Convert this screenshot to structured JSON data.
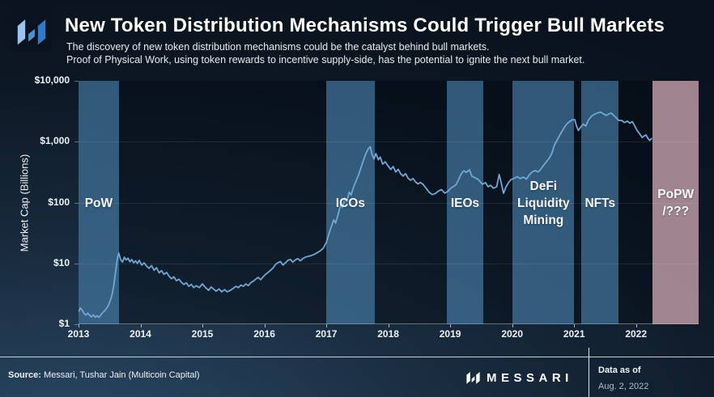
{
  "header": {
    "title": "New Token Distribution Mechanisms Could Trigger Bull Markets",
    "subtitle_line1": "The discovery of new token distribution mechanisms could be the catalyst behind bull markets.",
    "subtitle_line2": "Proof of Physical Work, using token rewards to incentive supply-side, has the potential to ignite the next bull market.",
    "logo_icon": "messari-m-icon",
    "logo_colors": [
      "#9cc3ec",
      "#4f8fd2",
      "#2e7ad0"
    ]
  },
  "chart_data": {
    "type": "line",
    "ylabel": "Market Cap (Billions)",
    "xlabel": "",
    "y_scale": "log",
    "ylim": [
      1,
      10000
    ],
    "xlim": [
      2013,
      2023.01
    ],
    "grid": "horizontal",
    "grid_values": [
      1000,
      100,
      10
    ],
    "y_ticks": [
      {
        "value": 10000,
        "label": "$10,000"
      },
      {
        "value": 1000,
        "label": "$1,000"
      },
      {
        "value": 100,
        "label": "$100"
      },
      {
        "value": 10,
        "label": "$10"
      },
      {
        "value": 1,
        "label": "$1"
      }
    ],
    "x_ticks": [
      {
        "value": 2013,
        "label": "2013"
      },
      {
        "value": 2014,
        "label": "2014"
      },
      {
        "value": 2015,
        "label": "2015"
      },
      {
        "value": 2016,
        "label": "2016"
      },
      {
        "value": 2017,
        "label": "2017"
      },
      {
        "value": 2018,
        "label": "2018"
      },
      {
        "value": 2019,
        "label": "2019"
      },
      {
        "value": 2020,
        "label": "2020"
      },
      {
        "value": 2021,
        "label": "2021"
      },
      {
        "value": 2022,
        "label": "2022"
      }
    ],
    "line_color": "#72a7d3",
    "band_color": "#3a6080",
    "highlight_band_color": "#a48b96",
    "bands": [
      {
        "name": "pow",
        "label_lines": [
          "PoW"
        ],
        "x0": 2013.0,
        "x1": 2013.65,
        "accent": false
      },
      {
        "name": "icos",
        "label_lines": [
          "ICOs"
        ],
        "x0": 2017.0,
        "x1": 2017.78,
        "accent": false
      },
      {
        "name": "ieos",
        "label_lines": [
          "IEOs"
        ],
        "x0": 2018.94,
        "x1": 2019.54,
        "accent": false
      },
      {
        "name": "defi-liquidity-mining",
        "label_lines": [
          "DeFi",
          "Liquidity",
          "Mining"
        ],
        "x0": 2020.01,
        "x1": 2021.0,
        "accent": false
      },
      {
        "name": "nfts",
        "label_lines": [
          "NFTs"
        ],
        "x0": 2021.12,
        "x1": 2021.72,
        "accent": false
      },
      {
        "name": "popw",
        "label_lines": [
          "PoPW",
          "/???"
        ],
        "x0": 2022.27,
        "x1": 2023.01,
        "accent": true
      }
    ],
    "series": [
      {
        "name": "total_crypto_market_cap_usd_billions",
        "points": [
          [
            2013.0,
            1.6
          ],
          [
            2013.03,
            1.85
          ],
          [
            2013.06,
            1.7
          ],
          [
            2013.09,
            1.5
          ],
          [
            2013.12,
            1.42
          ],
          [
            2013.15,
            1.52
          ],
          [
            2013.18,
            1.4
          ],
          [
            2013.21,
            1.32
          ],
          [
            2013.24,
            1.42
          ],
          [
            2013.27,
            1.3
          ],
          [
            2013.3,
            1.38
          ],
          [
            2013.33,
            1.3
          ],
          [
            2013.36,
            1.42
          ],
          [
            2013.39,
            1.55
          ],
          [
            2013.42,
            1.65
          ],
          [
            2013.45,
            1.8
          ],
          [
            2013.48,
            2.0
          ],
          [
            2013.51,
            2.4
          ],
          [
            2013.54,
            3.0
          ],
          [
            2013.57,
            4.4
          ],
          [
            2013.59,
            6.2
          ],
          [
            2013.61,
            9.0
          ],
          [
            2013.63,
            12.5
          ],
          [
            2013.65,
            14.8
          ],
          [
            2013.68,
            11.5
          ],
          [
            2013.71,
            10.5
          ],
          [
            2013.74,
            12.6
          ],
          [
            2013.77,
            11.4
          ],
          [
            2013.8,
            12.2
          ],
          [
            2013.83,
            10.6
          ],
          [
            2013.86,
            11.6
          ],
          [
            2013.89,
            10.2
          ],
          [
            2013.92,
            11.0
          ],
          [
            2013.95,
            10.0
          ],
          [
            2013.98,
            11.2
          ],
          [
            2014.02,
            9.4
          ],
          [
            2014.06,
            10.2
          ],
          [
            2014.1,
            9.0
          ],
          [
            2014.14,
            8.3
          ],
          [
            2014.18,
            9.2
          ],
          [
            2014.22,
            7.7
          ],
          [
            2014.26,
            8.5
          ],
          [
            2014.3,
            7.0
          ],
          [
            2014.34,
            7.6
          ],
          [
            2014.38,
            6.6
          ],
          [
            2014.42,
            7.1
          ],
          [
            2014.46,
            6.2
          ],
          [
            2014.5,
            5.6
          ],
          [
            2014.54,
            6.0
          ],
          [
            2014.58,
            5.2
          ],
          [
            2014.62,
            5.5
          ],
          [
            2014.66,
            4.9
          ],
          [
            2014.7,
            4.5
          ],
          [
            2014.74,
            4.8
          ],
          [
            2014.78,
            4.2
          ],
          [
            2014.82,
            4.5
          ],
          [
            2014.86,
            4.0
          ],
          [
            2014.9,
            4.3
          ],
          [
            2014.95,
            4.0
          ],
          [
            2015.0,
            4.6
          ],
          [
            2015.05,
            4.0
          ],
          [
            2015.1,
            3.6
          ],
          [
            2015.14,
            4.1
          ],
          [
            2015.18,
            3.8
          ],
          [
            2015.22,
            3.5
          ],
          [
            2015.27,
            3.8
          ],
          [
            2015.31,
            3.4
          ],
          [
            2015.36,
            3.7
          ],
          [
            2015.4,
            3.4
          ],
          [
            2015.45,
            3.6
          ],
          [
            2015.5,
            3.9
          ],
          [
            2015.54,
            4.2
          ],
          [
            2015.58,
            4.0
          ],
          [
            2015.62,
            4.4
          ],
          [
            2015.66,
            4.2
          ],
          [
            2015.7,
            4.6
          ],
          [
            2015.74,
            4.3
          ],
          [
            2015.78,
            4.8
          ],
          [
            2015.82,
            5.1
          ],
          [
            2015.86,
            5.5
          ],
          [
            2015.9,
            5.9
          ],
          [
            2015.94,
            5.4
          ],
          [
            2015.98,
            6.0
          ],
          [
            2016.02,
            6.6
          ],
          [
            2016.06,
            7.1
          ],
          [
            2016.1,
            7.7
          ],
          [
            2016.14,
            8.4
          ],
          [
            2016.18,
            9.6
          ],
          [
            2016.22,
            10.3
          ],
          [
            2016.26,
            10.7
          ],
          [
            2016.3,
            9.4
          ],
          [
            2016.34,
            10.2
          ],
          [
            2016.38,
            11.2
          ],
          [
            2016.42,
            11.6
          ],
          [
            2016.46,
            10.5
          ],
          [
            2016.5,
            11.4
          ],
          [
            2016.54,
            12.0
          ],
          [
            2016.58,
            11.0
          ],
          [
            2016.62,
            12.0
          ],
          [
            2016.66,
            12.6
          ],
          [
            2016.7,
            13.0
          ],
          [
            2016.75,
            13.4
          ],
          [
            2016.8,
            14.0
          ],
          [
            2016.85,
            14.9
          ],
          [
            2016.9,
            16.0
          ],
          [
            2016.95,
            17.8
          ],
          [
            2017.0,
            22
          ],
          [
            2017.04,
            30
          ],
          [
            2017.08,
            40
          ],
          [
            2017.12,
            52
          ],
          [
            2017.15,
            46
          ],
          [
            2017.19,
            63
          ],
          [
            2017.23,
            92
          ],
          [
            2017.26,
            82
          ],
          [
            2017.3,
            118
          ],
          [
            2017.33,
            104
          ],
          [
            2017.37,
            148
          ],
          [
            2017.4,
            133
          ],
          [
            2017.44,
            180
          ],
          [
            2017.48,
            225
          ],
          [
            2017.52,
            285
          ],
          [
            2017.56,
            375
          ],
          [
            2017.6,
            495
          ],
          [
            2017.64,
            645
          ],
          [
            2017.68,
            775
          ],
          [
            2017.71,
            825
          ],
          [
            2017.74,
            610
          ],
          [
            2017.77,
            520
          ],
          [
            2017.8,
            638
          ],
          [
            2017.84,
            505
          ],
          [
            2017.87,
            558
          ],
          [
            2017.91,
            428
          ],
          [
            2017.95,
            468
          ],
          [
            2018.0,
            398
          ],
          [
            2018.04,
            348
          ],
          [
            2018.08,
            390
          ],
          [
            2018.12,
            318
          ],
          [
            2018.16,
            352
          ],
          [
            2018.2,
            298
          ],
          [
            2018.24,
            272
          ],
          [
            2018.28,
            298
          ],
          [
            2018.32,
            252
          ],
          [
            2018.36,
            232
          ],
          [
            2018.4,
            248
          ],
          [
            2018.44,
            218
          ],
          [
            2018.48,
            202
          ],
          [
            2018.52,
            214
          ],
          [
            2018.56,
            199
          ],
          [
            2018.6,
            178
          ],
          [
            2018.66,
            148
          ],
          [
            2018.71,
            135
          ],
          [
            2018.76,
            141
          ],
          [
            2018.81,
            155
          ],
          [
            2018.86,
            163
          ],
          [
            2018.91,
            143
          ],
          [
            2018.96,
            152
          ],
          [
            2019.01,
            172
          ],
          [
            2019.06,
            185
          ],
          [
            2019.1,
            200
          ],
          [
            2019.14,
            244
          ],
          [
            2019.18,
            298
          ],
          [
            2019.22,
            334
          ],
          [
            2019.26,
            314
          ],
          [
            2019.31,
            344
          ],
          [
            2019.35,
            272
          ],
          [
            2019.39,
            258
          ],
          [
            2019.44,
            244
          ],
          [
            2019.48,
            222
          ],
          [
            2019.52,
            200
          ],
          [
            2019.57,
            212
          ],
          [
            2019.61,
            182
          ],
          [
            2019.65,
            192
          ],
          [
            2019.7,
            172
          ],
          [
            2019.75,
            182
          ],
          [
            2019.79,
            288
          ],
          [
            2019.82,
            218
          ],
          [
            2019.86,
            142
          ],
          [
            2019.9,
            180
          ],
          [
            2019.94,
            212
          ],
          [
            2019.98,
            238
          ],
          [
            2020.03,
            250
          ],
          [
            2020.08,
            266
          ],
          [
            2020.13,
            248
          ],
          [
            2020.18,
            262
          ],
          [
            2020.23,
            243
          ],
          [
            2020.28,
            288
          ],
          [
            2020.33,
            322
          ],
          [
            2020.37,
            335
          ],
          [
            2020.42,
            318
          ],
          [
            2020.46,
            352
          ],
          [
            2020.51,
            412
          ],
          [
            2020.55,
            465
          ],
          [
            2020.6,
            540
          ],
          [
            2020.64,
            640
          ],
          [
            2020.68,
            870
          ],
          [
            2020.73,
            1080
          ],
          [
            2020.78,
            1350
          ],
          [
            2020.83,
            1650
          ],
          [
            2020.88,
            1950
          ],
          [
            2020.93,
            2150
          ],
          [
            2020.97,
            2280
          ],
          [
            2021.01,
            2300
          ],
          [
            2021.04,
            1800
          ],
          [
            2021.07,
            1530
          ],
          [
            2021.11,
            1760
          ],
          [
            2021.15,
            1940
          ],
          [
            2021.19,
            1810
          ],
          [
            2021.23,
            2260
          ],
          [
            2021.28,
            2620
          ],
          [
            2021.33,
            2830
          ],
          [
            2021.38,
            2980
          ],
          [
            2021.43,
            3060
          ],
          [
            2021.47,
            2880
          ],
          [
            2021.52,
            2700
          ],
          [
            2021.56,
            2860
          ],
          [
            2021.6,
            2960
          ],
          [
            2021.64,
            2700
          ],
          [
            2021.68,
            2460
          ],
          [
            2021.72,
            2230
          ],
          [
            2021.77,
            2230
          ],
          [
            2021.81,
            2060
          ],
          [
            2021.86,
            2180
          ],
          [
            2021.9,
            2020
          ],
          [
            2021.94,
            2140
          ],
          [
            2021.98,
            1800
          ],
          [
            2022.02,
            1520
          ],
          [
            2022.06,
            1340
          ],
          [
            2022.1,
            1170
          ],
          [
            2022.13,
            1240
          ],
          [
            2022.16,
            1290
          ],
          [
            2022.19,
            1140
          ],
          [
            2022.22,
            1050
          ],
          [
            2022.25,
            1120
          ]
        ]
      }
    ]
  },
  "footer": {
    "source_label": "Source:",
    "source_value": "Messari, Tushar Jain (Multicoin Capital)",
    "brand": "MESSARI",
    "brand_icon": "messari-m-icon",
    "data_as_of_label": "Data as of",
    "data_as_of_date": "Aug. 2, 2022"
  }
}
